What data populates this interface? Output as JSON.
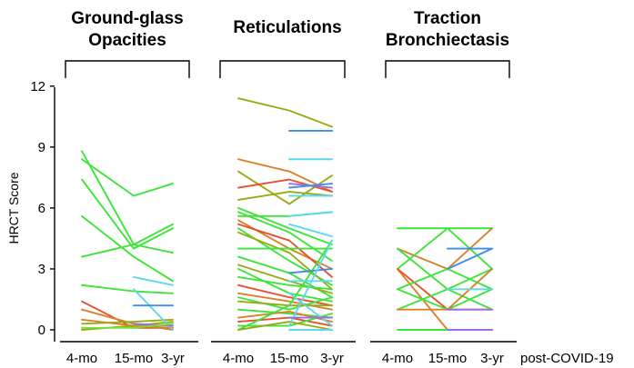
{
  "chart_data": {
    "type": "line",
    "ylabel": "HRCT Score",
    "xlabel": "post-COVID-19",
    "yticks": [
      0,
      3,
      6,
      9,
      12
    ],
    "ylim": [
      -0.6,
      12
    ],
    "categories": [
      "4-mo",
      "15-mo",
      "3-yr"
    ],
    "colors": {
      "olive": "#9aaa16",
      "orange": "#d9822b",
      "red": "#e8502d",
      "green": "#3fe43a",
      "lime": "#74e23c",
      "cyan": "#5fd8ee",
      "blue": "#3d8ee8",
      "purple": "#a06be0"
    },
    "panels": [
      {
        "title_lines": [
          "Ground-glass",
          "Opacities"
        ],
        "series": [
          {
            "values": [
              8.8,
              4.2,
              5.2
            ],
            "color": "green"
          },
          {
            "values": [
              8.4,
              6.6,
              7.2
            ],
            "color": "green"
          },
          {
            "values": [
              7.4,
              4.0,
              5.0
            ],
            "color": "green"
          },
          {
            "values": [
              5.6,
              3.6,
              2.4
            ],
            "color": "green"
          },
          {
            "values": [
              3.6,
              4.2,
              3.8
            ],
            "color": "green"
          },
          {
            "values": [
              2.2,
              1.9,
              1.8
            ],
            "color": "green"
          },
          {
            "values": [
              1.4,
              0.1,
              0.1
            ],
            "color": "red"
          },
          {
            "values": [
              1.0,
              0.3,
              0.0
            ],
            "color": "orange"
          },
          {
            "values": [
              0.5,
              0.2,
              0.1
            ],
            "color": "orange"
          },
          {
            "values": [
              0.3,
              0.4,
              0.5
            ],
            "color": "olive"
          },
          {
            "values": [
              0.0,
              0.2,
              0.4
            ],
            "color": "olive"
          },
          {
            "values": [
              null,
              2.6,
              2.2
            ],
            "color": "cyan"
          },
          {
            "values": [
              null,
              2.0,
              0.0
            ],
            "color": "cyan"
          },
          {
            "values": [
              null,
              1.2,
              1.2
            ],
            "color": "blue"
          },
          {
            "values": [
              null,
              0.3,
              0.2
            ],
            "color": "purple"
          },
          {
            "values": [
              0.1,
              0.1,
              0.3
            ],
            "color": "lime"
          }
        ]
      },
      {
        "title_lines": [
          "Reticulations"
        ],
        "series": [
          {
            "values": [
              11.4,
              10.8,
              10.0
            ],
            "color": "olive"
          },
          {
            "values": [
              8.4,
              7.8,
              6.8
            ],
            "color": "orange"
          },
          {
            "values": [
              7.8,
              6.2,
              7.6
            ],
            "color": "olive"
          },
          {
            "values": [
              7.0,
              7.4,
              6.8
            ],
            "color": "red"
          },
          {
            "values": [
              6.4,
              6.8,
              6.6
            ],
            "color": "olive"
          },
          {
            "values": [
              6.0,
              5.0,
              4.2
            ],
            "color": "green"
          },
          {
            "values": [
              5.8,
              4.8,
              3.4
            ],
            "color": "green"
          },
          {
            "values": [
              5.6,
              5.6,
              5.8
            ],
            "color": "green"
          },
          {
            "values": [
              5.4,
              4.0,
              3.0
            ],
            "color": "orange"
          },
          {
            "values": [
              5.2,
              4.4,
              2.6
            ],
            "color": "red"
          },
          {
            "values": [
              5.0,
              3.4,
              2.2
            ],
            "color": "green"
          },
          {
            "values": [
              4.8,
              3.8,
              2.0
            ],
            "color": "olive"
          },
          {
            "values": [
              4.0,
              4.0,
              4.0
            ],
            "color": "green"
          },
          {
            "values": [
              3.6,
              2.8,
              1.6
            ],
            "color": "green"
          },
          {
            "values": [
              3.2,
              2.4,
              1.8
            ],
            "color": "olive"
          },
          {
            "values": [
              3.0,
              1.8,
              1.4
            ],
            "color": "green"
          },
          {
            "values": [
              2.6,
              2.2,
              2.0
            ],
            "color": "green"
          },
          {
            "values": [
              2.2,
              1.6,
              1.2
            ],
            "color": "red"
          },
          {
            "values": [
              1.8,
              1.4,
              1.0
            ],
            "color": "orange"
          },
          {
            "values": [
              1.6,
              1.0,
              1.6
            ],
            "color": "green"
          },
          {
            "values": [
              1.4,
              1.2,
              1.2
            ],
            "color": "olive"
          },
          {
            "values": [
              1.0,
              0.8,
              0.6
            ],
            "color": "green"
          },
          {
            "values": [
              0.6,
              0.9,
              0.4
            ],
            "color": "orange"
          },
          {
            "values": [
              0.4,
              0.6,
              0.2
            ],
            "color": "red"
          },
          {
            "values": [
              0.2,
              0.2,
              0.8
            ],
            "color": "green"
          },
          {
            "values": [
              0.0,
              1.2,
              4.4
            ],
            "color": "green"
          },
          {
            "values": [
              0.0,
              0.4,
              0.0
            ],
            "color": "olive"
          },
          {
            "values": [
              null,
              9.8,
              9.8
            ],
            "color": "blue"
          },
          {
            "values": [
              null,
              8.4,
              8.4
            ],
            "color": "cyan"
          },
          {
            "values": [
              null,
              7.2,
              7.0
            ],
            "color": "purple"
          },
          {
            "values": [
              null,
              7.0,
              7.2
            ],
            "color": "blue"
          },
          {
            "values": [
              null,
              6.6,
              6.6
            ],
            "color": "cyan"
          },
          {
            "values": [
              null,
              5.6,
              5.8
            ],
            "color": "cyan"
          },
          {
            "values": [
              null,
              5.2,
              4.6
            ],
            "color": "cyan"
          },
          {
            "values": [
              null,
              2.8,
              3.0
            ],
            "color": "blue"
          },
          {
            "values": [
              null,
              2.4,
              2.4
            ],
            "color": "cyan"
          },
          {
            "values": [
              null,
              1.8,
              0.2
            ],
            "color": "cyan"
          },
          {
            "values": [
              null,
              0.2,
              4.4
            ],
            "color": "cyan"
          },
          {
            "values": [
              null,
              0.6,
              0.6
            ],
            "color": "purple"
          },
          {
            "values": [
              null,
              0.0,
              0.0
            ],
            "color": "cyan"
          }
        ]
      },
      {
        "title_lines": [
          "Traction",
          "Bronchiectasis"
        ],
        "series": [
          {
            "values": [
              5.0,
              5.0,
              5.0
            ],
            "color": "green"
          },
          {
            "values": [
              4.0,
              3.0,
              5.0
            ],
            "color": "orange"
          },
          {
            "values": [
              4.0,
              2.0,
              3.0
            ],
            "color": "green"
          },
          {
            "values": [
              3.0,
              5.0,
              3.0
            ],
            "color": "green"
          },
          {
            "values": [
              3.0,
              0.0,
              0.0
            ],
            "color": "orange"
          },
          {
            "values": [
              3.0,
              1.0,
              1.0
            ],
            "color": "red"
          },
          {
            "values": [
              2.0,
              3.0,
              2.0
            ],
            "color": "green"
          },
          {
            "values": [
              2.0,
              1.0,
              2.0
            ],
            "color": "green"
          },
          {
            "values": [
              1.0,
              2.0,
              1.0
            ],
            "color": "green"
          },
          {
            "values": [
              1.0,
              1.0,
              3.0
            ],
            "color": "orange"
          },
          {
            "values": [
              0.0,
              0.0,
              0.0
            ],
            "color": "green"
          },
          {
            "values": [
              null,
              3.0,
              4.0
            ],
            "color": "blue"
          },
          {
            "values": [
              null,
              4.0,
              4.0
            ],
            "color": "blue"
          },
          {
            "values": [
              null,
              2.0,
              2.0
            ],
            "color": "cyan"
          },
          {
            "values": [
              null,
              1.0,
              1.0
            ],
            "color": "purple"
          },
          {
            "values": [
              null,
              0.0,
              0.0
            ],
            "color": "purple"
          }
        ]
      }
    ]
  }
}
